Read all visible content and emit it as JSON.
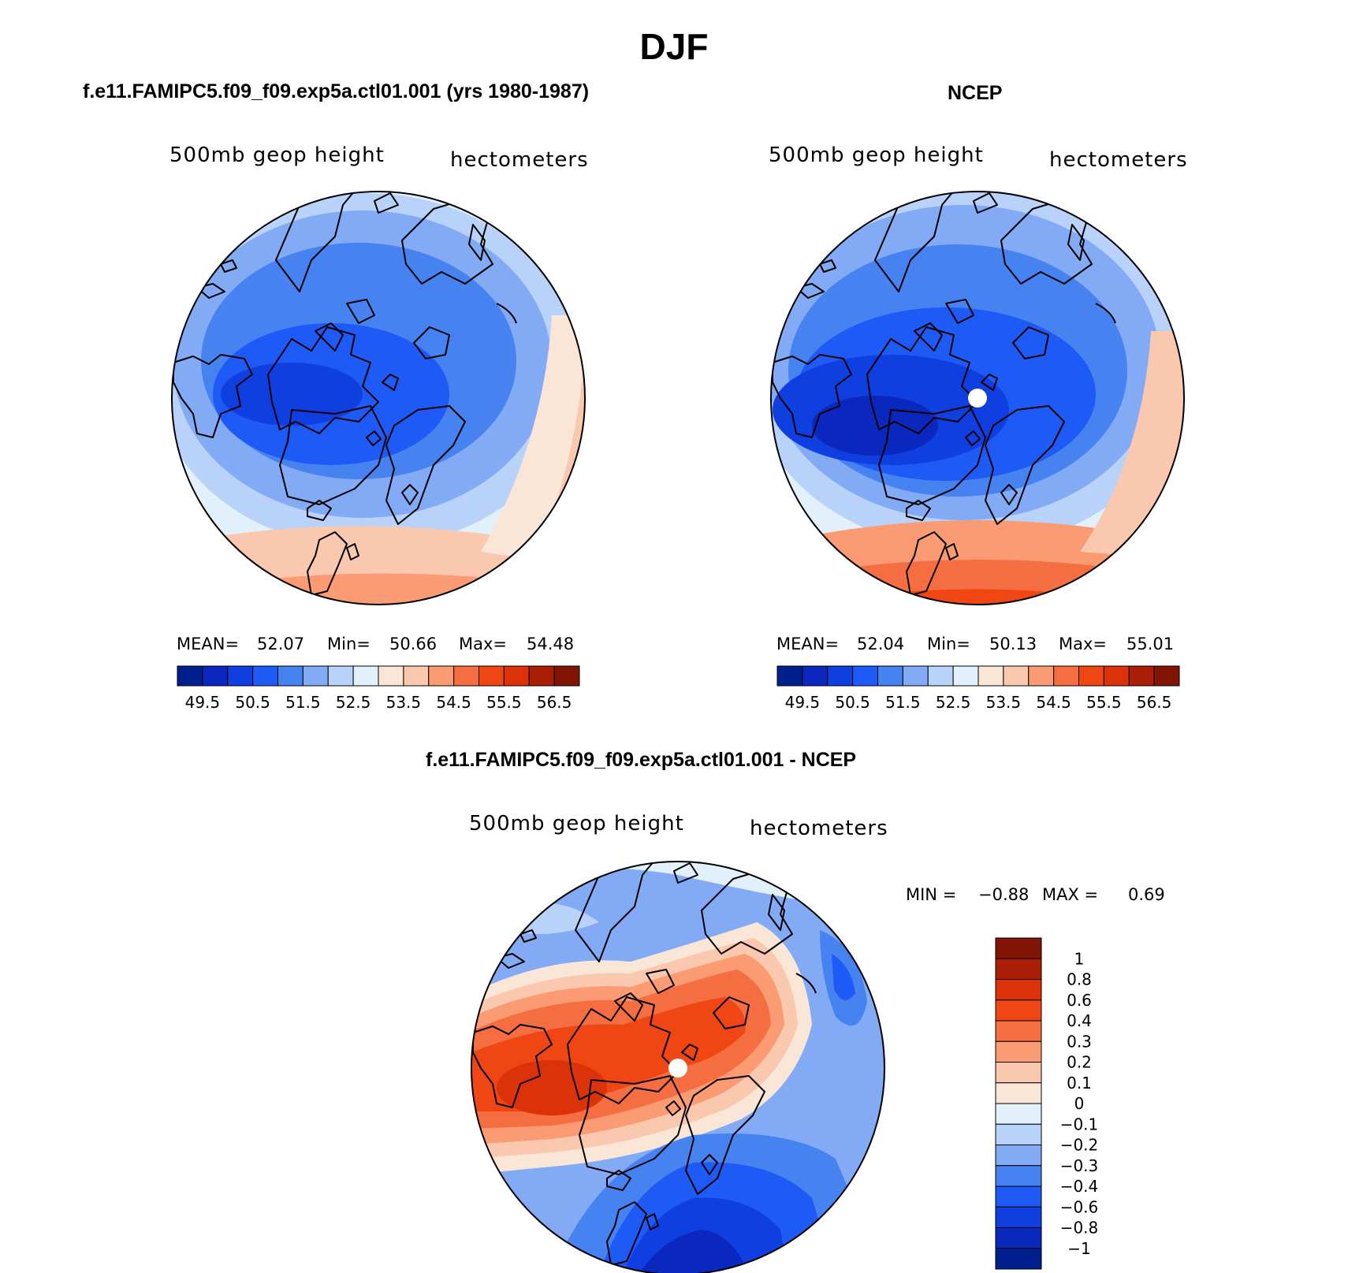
{
  "figure": {
    "title": "DJF",
    "panel_label": "500mb geop height",
    "units_label": "hectometers"
  },
  "panels": {
    "model": {
      "title": "f.e11.FAMIPC5.f09_f09.exp5a.ctl01.001 (yrs 1980-1987)",
      "mean_label": "MEAN=",
      "mean": "52.07",
      "min_label": "Min=",
      "min": "50.66",
      "max_label": "Max=",
      "max": "54.48"
    },
    "ncep": {
      "title": "NCEP",
      "mean_label": "MEAN=",
      "mean": "52.04",
      "min_label": "Min=",
      "min": "50.13",
      "max_label": "Max=",
      "max": "55.01"
    },
    "diff": {
      "title": "f.e11.FAMIPC5.f09_f09.exp5a.ctl01.001 - NCEP",
      "min_label": "MIN =",
      "min": "−0.88",
      "max_label": "MAX =",
      "max": "0.69"
    }
  },
  "chart_data": [
    {
      "type": "heatmap",
      "name": "model-map",
      "projection": "north polar stereographic",
      "variable": "500mb geop height",
      "units": "hectometers",
      "mean": 52.07,
      "min": 50.66,
      "max": 54.48,
      "colorbar_levels": [
        49.5,
        50.5,
        51.5,
        52.5,
        53.5,
        54.5,
        55.5,
        56.5
      ],
      "colorbar_tick_labels": [
        "49.5",
        "50.5",
        "51.5",
        "52.5",
        "53.5",
        "54.5",
        "55.5",
        "56.5"
      ],
      "colorbar_colors": [
        "#001e8c",
        "#0a28be",
        "#0f3ee1",
        "#1e5af5",
        "#4682f0",
        "#82aaf5",
        "#b9d2fa",
        "#e1f0fa",
        "#fae6d7",
        "#fac8af",
        "#fa9b73",
        "#f56e41",
        "#f04614",
        "#dc320a",
        "#aa1e05",
        "#821405"
      ]
    },
    {
      "type": "heatmap",
      "name": "ncep-map",
      "projection": "north polar stereographic",
      "variable": "500mb geop height",
      "units": "hectometers",
      "mean": 52.04,
      "min": 50.13,
      "max": 55.01,
      "colorbar_levels": [
        49.5,
        50.5,
        51.5,
        52.5,
        53.5,
        54.5,
        55.5,
        56.5
      ],
      "colorbar_tick_labels": [
        "49.5",
        "50.5",
        "51.5",
        "52.5",
        "53.5",
        "54.5",
        "55.5",
        "56.5"
      ],
      "colorbar_colors": [
        "#001e8c",
        "#0a28be",
        "#0f3ee1",
        "#1e5af5",
        "#4682f0",
        "#82aaf5",
        "#b9d2fa",
        "#e1f0fa",
        "#fae6d7",
        "#fac8af",
        "#fa9b73",
        "#f56e41",
        "#f04614",
        "#dc320a",
        "#aa1e05",
        "#821405"
      ]
    },
    {
      "type": "heatmap",
      "name": "difference-map",
      "projection": "north polar stereographic",
      "variable": "500mb geop height",
      "units": "hectometers",
      "min": -0.88,
      "max": 0.69,
      "colorbar_tick_labels": [
        "1",
        "0.8",
        "0.6",
        "0.4",
        "0.3",
        "0.2",
        "0.1",
        "0",
        "−0.1",
        "−0.2",
        "−0.3",
        "−0.4",
        "−0.6",
        "−0.8",
        "−1"
      ],
      "colorbar_colors": [
        "#821405",
        "#aa1e05",
        "#dc320a",
        "#f04614",
        "#f56e41",
        "#fa9b73",
        "#fac8af",
        "#fae6d7",
        "#e1f0fa",
        "#b9d2fa",
        "#82aaf5",
        "#4682f0",
        "#1e5af5",
        "#0f3ee1",
        "#0a28be",
        "#001e8c"
      ]
    }
  ]
}
